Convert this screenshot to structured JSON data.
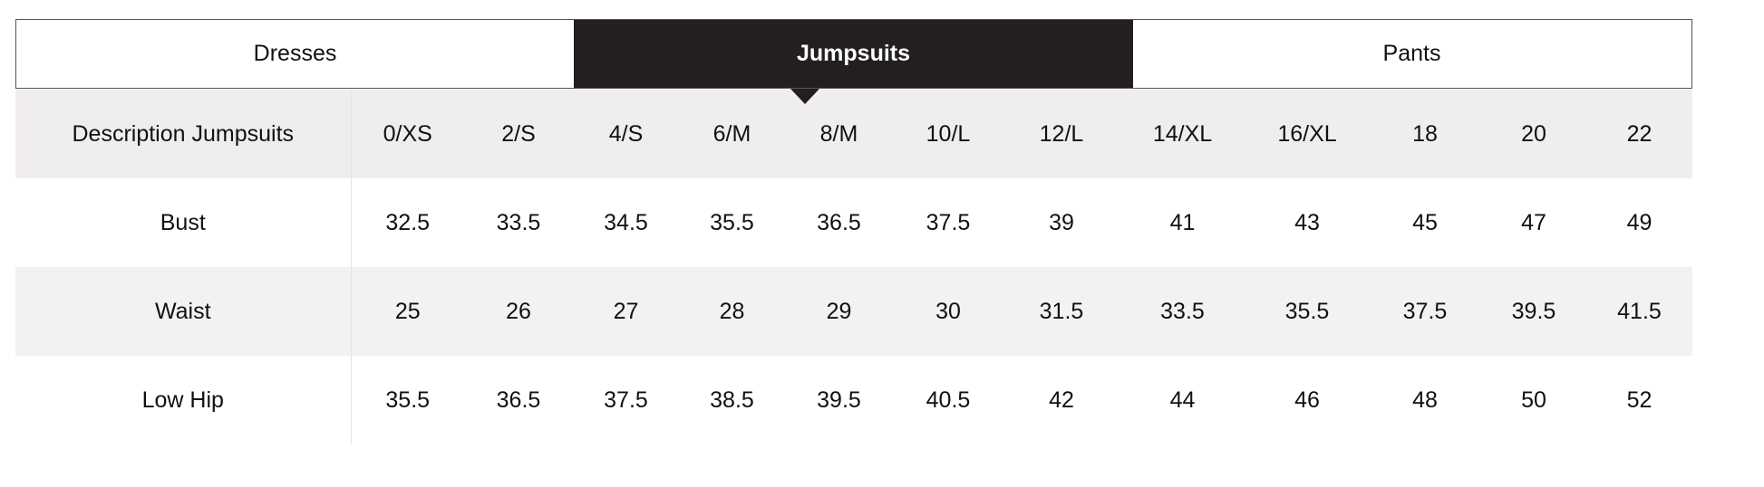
{
  "tabs": [
    {
      "label": "Dresses",
      "active": false
    },
    {
      "label": "Jumpsuits",
      "active": true
    },
    {
      "label": "Pants",
      "active": false
    }
  ],
  "table": {
    "header": [
      "Description Jumpsuits",
      "0/XS",
      "2/S",
      "4/S",
      "6/M",
      "8/M",
      "10/L",
      "12/L",
      "14/XL",
      "16/XL",
      "18",
      "20",
      "22"
    ],
    "rows": [
      [
        "Bust",
        "32.5",
        "33.5",
        "34.5",
        "35.5",
        "36.5",
        "37.5",
        "39",
        "41",
        "43",
        "45",
        "47",
        "49"
      ],
      [
        "Waist",
        "25",
        "26",
        "27",
        "28",
        "29",
        "30",
        "31.5",
        "33.5",
        "35.5",
        "37.5",
        "39.5",
        "41.5"
      ],
      [
        "Low Hip",
        "35.5",
        "36.5",
        "37.5",
        "38.5",
        "39.5",
        "40.5",
        "42",
        "44",
        "46",
        "48",
        "50",
        "52"
      ]
    ]
  },
  "colors": {
    "active_tab": "#231f20",
    "header_bg": "#f0eded",
    "alt_row_bg": "#f2f2f2"
  }
}
